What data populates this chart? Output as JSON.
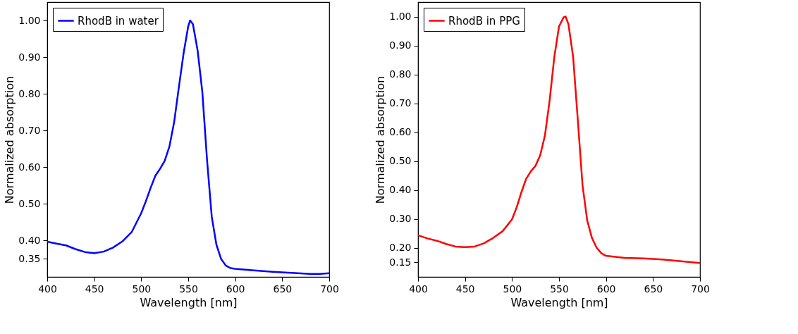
{
  "chart_data": [
    {
      "type": "line",
      "xlabel": "Wavelength [nm]",
      "ylabel": "Normalized absorption",
      "xlim": [
        400,
        700
      ],
      "ylim": [
        0.3,
        1.05
      ],
      "xticks": [
        400,
        450,
        500,
        550,
        600,
        650,
        700
      ],
      "yticks": [
        0.35,
        {
          "value": 0.4,
          "label": "0.40"
        },
        {
          "value": 0.5,
          "label": "0.50"
        },
        {
          "value": 0.6,
          "label": "0.60"
        },
        {
          "value": 0.7,
          "label": "0.70"
        },
        {
          "value": 0.8,
          "label": "0.80"
        },
        {
          "value": 0.9,
          "label": "0.90"
        },
        {
          "value": 1.0,
          "label": "1.00"
        }
      ],
      "grid": false,
      "legend": "top left",
      "line_style": "solid",
      "marker": "none",
      "x": [
        400,
        410,
        420,
        430,
        440,
        450,
        460,
        470,
        480,
        490,
        500,
        505,
        510,
        515,
        520,
        525,
        530,
        535,
        540,
        545,
        550,
        552,
        555,
        560,
        565,
        570,
        575,
        580,
        585,
        590,
        595,
        600,
        620,
        640,
        660,
        680,
        690,
        700
      ],
      "series": [
        {
          "name": "RhodB in water",
          "color": "#0000ff",
          "values": [
            0.396,
            0.391,
            0.386,
            0.376,
            0.368,
            0.365,
            0.369,
            0.38,
            0.397,
            0.423,
            0.474,
            0.507,
            0.543,
            0.576,
            0.595,
            0.617,
            0.656,
            0.722,
            0.817,
            0.909,
            0.984,
            1.0,
            0.99,
            0.918,
            0.805,
            0.62,
            0.465,
            0.388,
            0.349,
            0.331,
            0.324,
            0.322,
            0.318,
            0.314,
            0.311,
            0.308,
            0.308,
            0.31
          ]
        }
      ]
    },
    {
      "type": "line",
      "xlabel": "Wavelength [nm]",
      "ylabel": "Normalized absorption",
      "xlim": [
        400,
        700
      ],
      "ylim": [
        0.1,
        1.05
      ],
      "xticks": [
        400,
        450,
        500,
        550,
        600,
        650,
        700
      ],
      "yticks": [
        0.15,
        {
          "value": 0.2,
          "label": "0.20"
        },
        {
          "value": 0.3,
          "label": "0.30"
        },
        {
          "value": 0.4,
          "label": "0.40"
        },
        {
          "value": 0.5,
          "label": "0.50"
        },
        {
          "value": 0.6,
          "label": "0.60"
        },
        {
          "value": 0.7,
          "label": "0.70"
        },
        {
          "value": 0.8,
          "label": "0.80"
        },
        {
          "value": 0.9,
          "label": "0.90"
        },
        {
          "value": 1.0,
          "label": "1.00"
        }
      ],
      "grid": false,
      "legend": "top left",
      "line_style": "solid",
      "marker": "none",
      "x": [
        400,
        410,
        420,
        430,
        440,
        450,
        460,
        470,
        480,
        490,
        500,
        505,
        510,
        515,
        520,
        525,
        530,
        535,
        540,
        545,
        550,
        555,
        557,
        560,
        565,
        570,
        575,
        580,
        585,
        590,
        595,
        600,
        620,
        640,
        660,
        680,
        700
      ],
      "series": [
        {
          "name": "RhodB in PPG",
          "color": "#ff0000",
          "values": [
            0.244,
            0.233,
            0.225,
            0.214,
            0.205,
            0.203,
            0.205,
            0.216,
            0.235,
            0.258,
            0.299,
            0.341,
            0.393,
            0.439,
            0.465,
            0.484,
            0.521,
            0.589,
            0.71,
            0.861,
            0.966,
            0.998,
            1.0,
            0.974,
            0.861,
            0.642,
            0.417,
            0.295,
            0.235,
            0.201,
            0.182,
            0.173,
            0.166,
            0.164,
            0.16,
            0.154,
            0.148
          ]
        }
      ]
    }
  ]
}
